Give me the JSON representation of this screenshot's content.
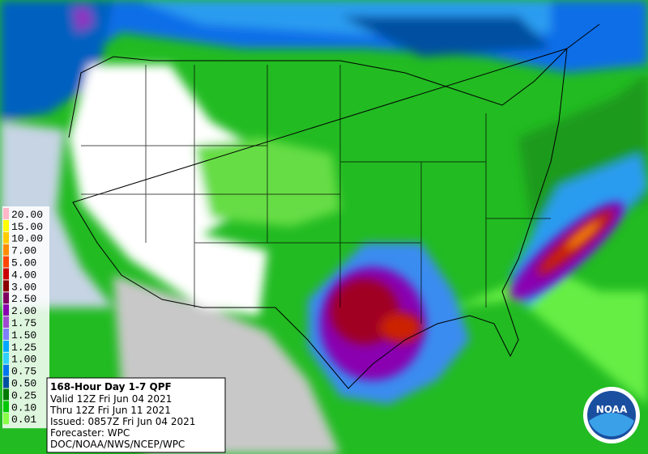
{
  "legend": {
    "items": [
      {
        "label": "20.00",
        "color": "#ffb6c8"
      },
      {
        "label": "15.00",
        "color": "#ffff00"
      },
      {
        "label": "10.00",
        "color": "#ffcc00"
      },
      {
        "label": "7.00",
        "color": "#ff8c00"
      },
      {
        "label": "5.00",
        "color": "#ff4500"
      },
      {
        "label": "4.00",
        "color": "#cc0000"
      },
      {
        "label": "3.00",
        "color": "#8b0000"
      },
      {
        "label": "2.50",
        "color": "#800060"
      },
      {
        "label": "2.00",
        "color": "#8a00b0"
      },
      {
        "label": "1.75",
        "color": "#a04ad0"
      },
      {
        "label": "1.50",
        "color": "#7f7fff"
      },
      {
        "label": "1.25",
        "color": "#00a8ff"
      },
      {
        "label": "1.00",
        "color": "#30d0ff"
      },
      {
        "label": "0.75",
        "color": "#0077ee"
      },
      {
        "label": "0.50",
        "color": "#0050a0"
      },
      {
        "label": "0.25",
        "color": "#007a00"
      },
      {
        "label": "0.10",
        "color": "#00c800"
      },
      {
        "label": "0.01",
        "color": "#88ff44"
      }
    ]
  },
  "info": {
    "title": "168-Hour Day 1-7 QPF",
    "lines": [
      "Valid 12Z Fri Jun 04 2021",
      "Thru 12Z Fri Jun 11 2021",
      "Issued: 0857Z Fri Jun 04 2021",
      "Forecaster: WPC",
      "DOC/NOAA/NWS/NCEP/WPC"
    ]
  },
  "logo": {
    "text": "NOAA"
  }
}
